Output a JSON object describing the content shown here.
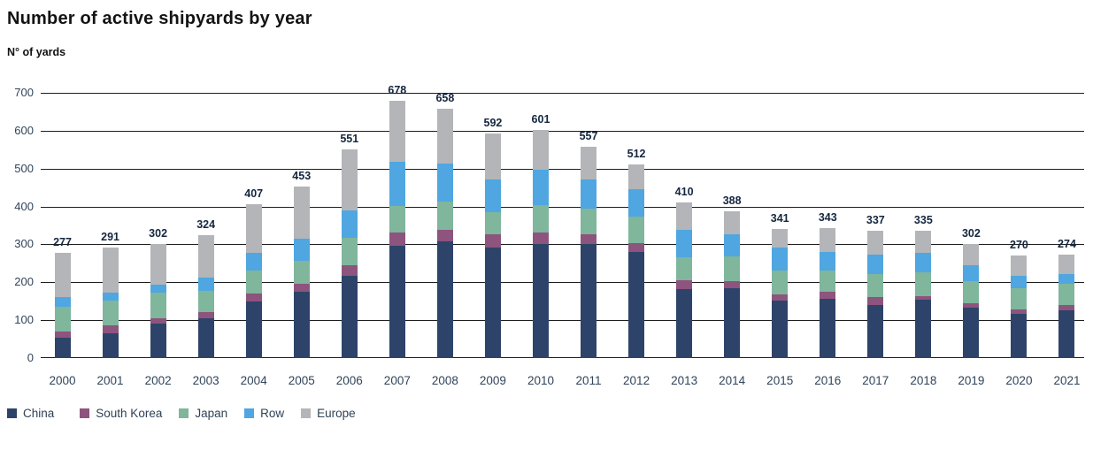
{
  "header": {
    "title": "Number of active shipyards by year",
    "subtitle": "N° of yards"
  },
  "chart_data": {
    "type": "bar",
    "stacked": true,
    "title": "Number of active shipyards by year",
    "ylabel": "N° of yards",
    "xlabel": "",
    "ylim": [
      0,
      700
    ],
    "yticks": [
      0,
      100,
      200,
      300,
      400,
      500,
      600,
      700
    ],
    "grid": true,
    "legend_position": "bottom-left",
    "categories": [
      "2000",
      "2001",
      "2002",
      "2003",
      "2004",
      "2005",
      "2006",
      "2007",
      "2008",
      "2009",
      "2010",
      "2011",
      "2012",
      "2013",
      "2014",
      "2015",
      "2016",
      "2017",
      "2018",
      "2019",
      "2020",
      "2021"
    ],
    "series": [
      {
        "name": "China",
        "color": "#2e4369",
        "values": [
          54,
          66,
          90,
          106,
          150,
          175,
          217,
          296,
          309,
          292,
          300,
          301,
          280,
          183,
          185,
          151,
          156,
          140,
          154,
          134,
          117,
          126
        ]
      },
      {
        "name": "South Korea",
        "color": "#8d547e",
        "values": [
          16,
          20,
          16,
          15,
          21,
          21,
          27,
          35,
          30,
          34,
          31,
          26,
          24,
          22,
          18,
          18,
          20,
          21,
          10,
          10,
          12,
          13
        ]
      },
      {
        "name": "Japan",
        "color": "#7fb69c",
        "values": [
          65,
          66,
          67,
          57,
          60,
          61,
          73,
          70,
          75,
          60,
          72,
          68,
          70,
          60,
          65,
          63,
          54,
          60,
          62,
          59,
          56,
          58
        ]
      },
      {
        "name": "Row",
        "color": "#4fa6e0",
        "values": [
          27,
          21,
          21,
          35,
          47,
          58,
          72,
          117,
          100,
          86,
          94,
          76,
          72,
          74,
          58,
          59,
          49,
          52,
          51,
          41,
          32,
          24
        ]
      },
      {
        "name": "Europe",
        "color": "#b4b5b9",
        "values": [
          115,
          118,
          108,
          111,
          129,
          138,
          162,
          160,
          144,
          120,
          104,
          86,
          66,
          71,
          62,
          50,
          64,
          64,
          58,
          58,
          53,
          53
        ]
      }
    ],
    "totals": [
      277,
      291,
      302,
      324,
      407,
      453,
      551,
      678,
      658,
      592,
      601,
      557,
      512,
      410,
      388,
      341,
      343,
      337,
      335,
      302,
      270,
      274
    ]
  },
  "style_colors": {
    "gridline": "#1e1e1e",
    "axis_text": "#30445b",
    "value_label": "#14263f",
    "title_text": "#131313"
  }
}
